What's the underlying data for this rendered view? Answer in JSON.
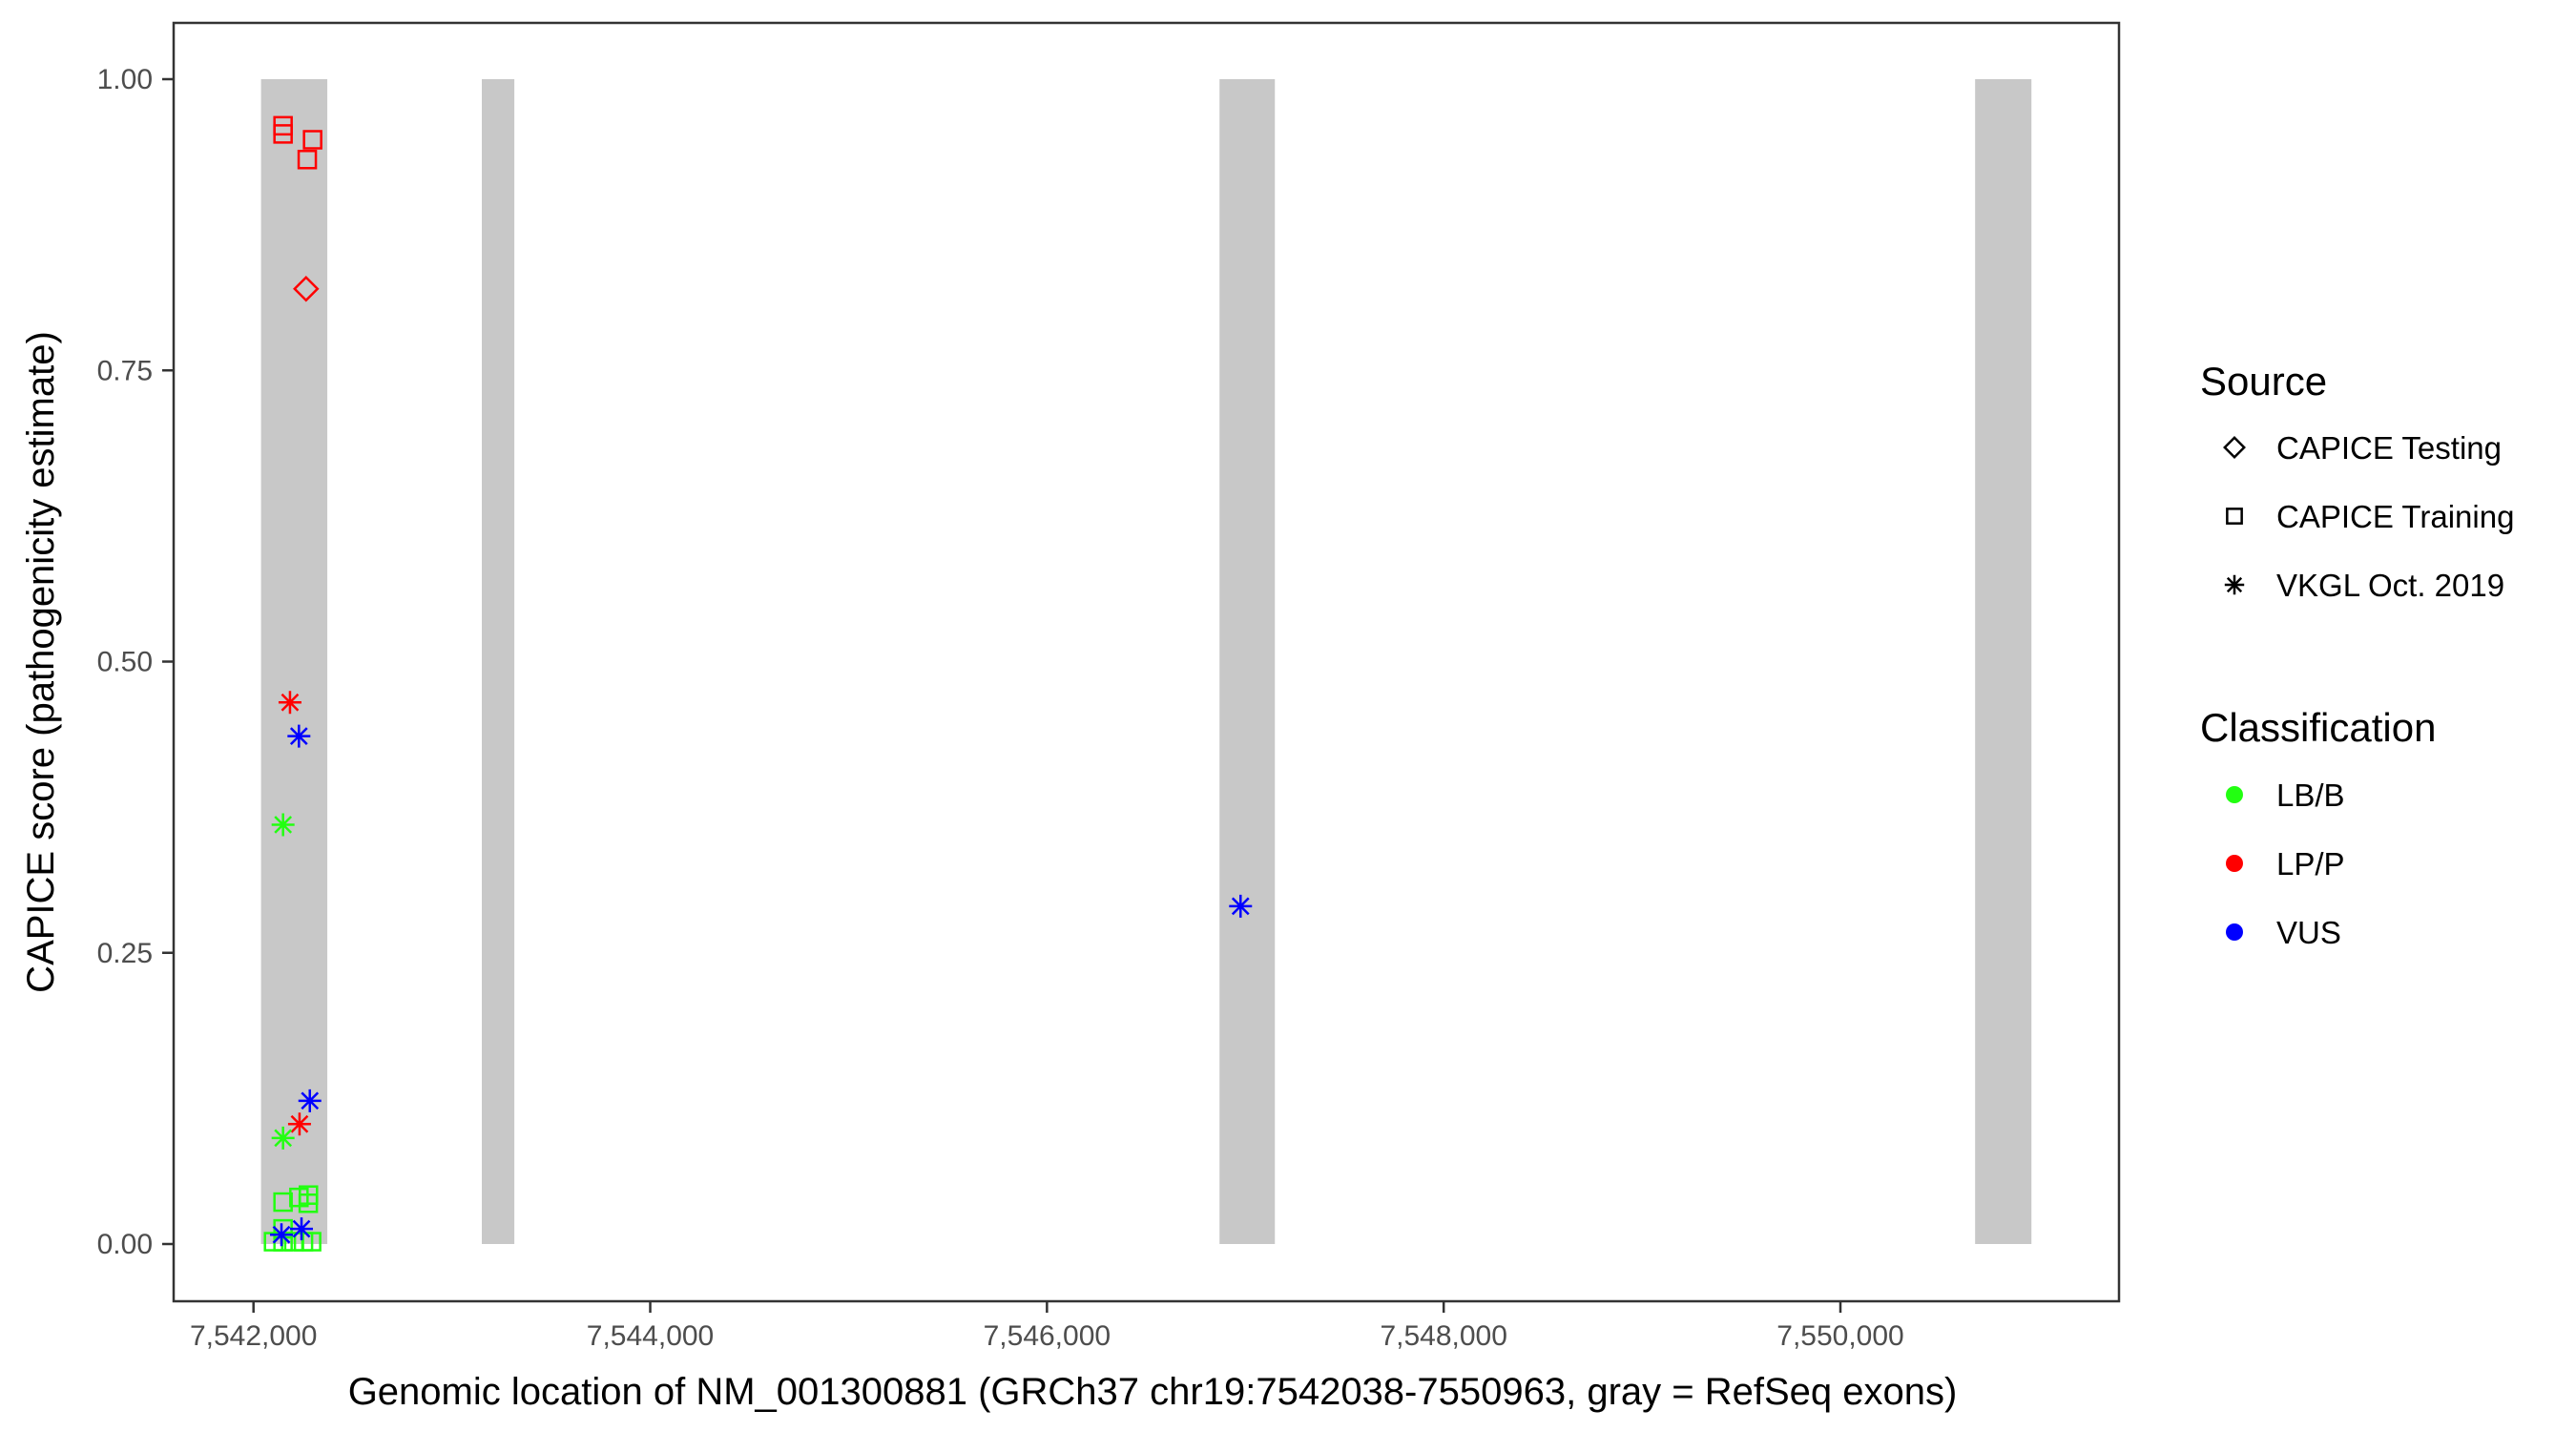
{
  "chart_data": {
    "type": "scatter",
    "title": "",
    "xlabel": "Genomic location of NM_001300881 (GRCh37 chr19:7542038-7550963, gray = RefSeq exons)",
    "ylabel": "CAPICE score (pathogenicity estimate)",
    "xlim": [
      7541600,
      7551100
    ],
    "ylim": [
      -0.045,
      1.045
    ],
    "x_ticks": [
      7542000,
      7544000,
      7546000,
      7548000,
      7550000
    ],
    "x_tick_labels": [
      "7,542,000",
      "7,544,000",
      "7,546,000",
      "7,548,000",
      "7,550,000"
    ],
    "y_ticks": [
      0,
      0.25,
      0.5,
      0.75,
      1.0
    ],
    "y_tick_labels": [
      "0.00",
      "0.25",
      "0.50",
      "0.75",
      "1.00"
    ],
    "grid": false,
    "exons": [
      {
        "start": 7542038,
        "end": 7542372
      },
      {
        "start": 7543151,
        "end": 7543315
      },
      {
        "start": 7546870,
        "end": 7547149
      },
      {
        "start": 7550679,
        "end": 7550963
      }
    ],
    "exon_color": "#c8c8c8",
    "legend": {
      "placement": "right",
      "source": {
        "title": "Source",
        "entries": [
          {
            "label": "CAPICE Testing",
            "shape": "diamond"
          },
          {
            "label": "CAPICE Training",
            "shape": "square"
          },
          {
            "label": "VKGL Oct. 2019",
            "shape": "asterisk"
          }
        ]
      },
      "classification": {
        "title": "Classification",
        "entries": [
          {
            "label": "LB/B",
            "color": "#22ff11"
          },
          {
            "label": "LP/P",
            "color": "#ff0000"
          },
          {
            "label": "VUS",
            "color": "#0000ff"
          }
        ]
      }
    },
    "points": [
      {
        "x": 7542149,
        "y": 0.96,
        "source": "CAPICE Training",
        "class": "LP/P"
      },
      {
        "x": 7542149,
        "y": 0.953,
        "source": "CAPICE Training",
        "class": "LP/P"
      },
      {
        "x": 7542298,
        "y": 0.948,
        "source": "CAPICE Training",
        "class": "LP/P"
      },
      {
        "x": 7542271,
        "y": 0.931,
        "source": "CAPICE Training",
        "class": "LP/P"
      },
      {
        "x": 7542265,
        "y": 0.82,
        "source": "CAPICE Testing",
        "class": "LP/P"
      },
      {
        "x": 7542184,
        "y": 0.465,
        "source": "VKGL Oct. 2019",
        "class": "LP/P"
      },
      {
        "x": 7542229,
        "y": 0.436,
        "source": "VKGL Oct. 2019",
        "class": "VUS"
      },
      {
        "x": 7542149,
        "y": 0.36,
        "source": "VKGL Oct. 2019",
        "class": "LB/B"
      },
      {
        "x": 7546976,
        "y": 0.29,
        "source": "VKGL Oct. 2019",
        "class": "VUS"
      },
      {
        "x": 7542284,
        "y": 0.123,
        "source": "VKGL Oct. 2019",
        "class": "VUS"
      },
      {
        "x": 7542232,
        "y": 0.103,
        "source": "VKGL Oct. 2019",
        "class": "LP/P"
      },
      {
        "x": 7542149,
        "y": 0.091,
        "source": "VKGL Oct. 2019",
        "class": "LB/B"
      },
      {
        "x": 7542149,
        "y": 0.036,
        "source": "CAPICE Training",
        "class": "LB/B"
      },
      {
        "x": 7542229,
        "y": 0.04,
        "source": "CAPICE Training",
        "class": "LB/B"
      },
      {
        "x": 7542277,
        "y": 0.042,
        "source": "CAPICE Training",
        "class": "LB/B"
      },
      {
        "x": 7542276,
        "y": 0.035,
        "source": "CAPICE Training",
        "class": "LB/B"
      },
      {
        "x": 7542149,
        "y": 0.013,
        "source": "CAPICE Training",
        "class": "LB/B"
      },
      {
        "x": 7542101,
        "y": 0.002,
        "source": "CAPICE Training",
        "class": "LB/B"
      },
      {
        "x": 7542149,
        "y": 0.002,
        "source": "CAPICE Training",
        "class": "LB/B"
      },
      {
        "x": 7542203,
        "y": 0.002,
        "source": "CAPICE Training",
        "class": "LB/B"
      },
      {
        "x": 7542252,
        "y": 0.002,
        "source": "CAPICE Training",
        "class": "LB/B"
      },
      {
        "x": 7542293,
        "y": 0.002,
        "source": "CAPICE Training",
        "class": "LB/B"
      },
      {
        "x": 7542141,
        "y": 0.008,
        "source": "VKGL Oct. 2019",
        "class": "VUS"
      },
      {
        "x": 7542242,
        "y": 0.013,
        "source": "VKGL Oct. 2019",
        "class": "VUS"
      }
    ]
  }
}
